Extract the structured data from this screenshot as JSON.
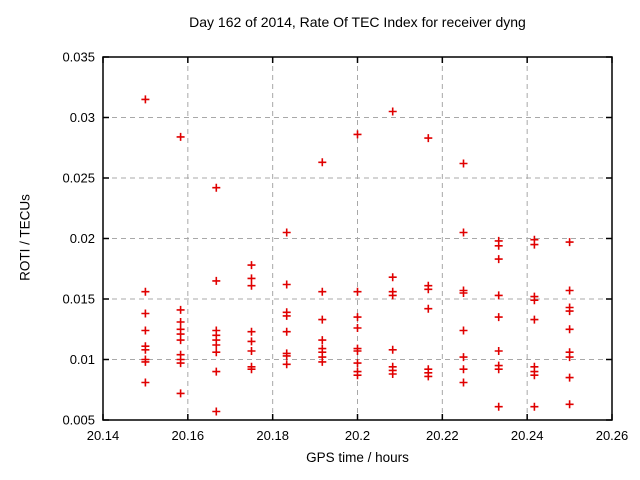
{
  "chart_data": {
    "type": "scatter",
    "title": "Day 162 of 2014, Rate Of TEC Index for receiver dyng",
    "xlabel": "GPS time / hours",
    "ylabel": "ROTI / TECUs",
    "xlim": [
      20.14,
      20.26
    ],
    "ylim": [
      0.005,
      0.035
    ],
    "xtick_values": [
      20.14,
      20.16,
      20.18,
      20.2,
      20.22,
      20.24,
      20.26
    ],
    "xtick_labels": [
      "20.14",
      "20.16",
      "20.18",
      "20.2",
      "20.22",
      "20.24",
      "20.26"
    ],
    "ytick_values": [
      0.005,
      0.01,
      0.015,
      0.02,
      0.025,
      0.03,
      0.035
    ],
    "ytick_labels": [
      "0.005",
      "0.01",
      "0.015",
      "0.02",
      "0.025",
      "0.03",
      "0.035"
    ],
    "grid": true,
    "legend": "none",
    "style": {
      "marker_shape": "plus",
      "marker_color": "#e00000",
      "marker_size": 4,
      "marker_stroke": 1.6,
      "grid_color": "#a8a8a8",
      "axis_color": "#000000",
      "text_color": "#000000",
      "background": "#ffffff"
    },
    "series": [
      {
        "name": "ROTI",
        "points": [
          [
            20.15,
            0.0315
          ],
          [
            20.15,
            0.0156
          ],
          [
            20.15,
            0.0138
          ],
          [
            20.15,
            0.0124
          ],
          [
            20.15,
            0.0111
          ],
          [
            20.15,
            0.0108
          ],
          [
            20.15,
            0.01
          ],
          [
            20.15,
            0.0098
          ],
          [
            20.15,
            0.0081
          ],
          [
            20.1583,
            0.0284
          ],
          [
            20.1583,
            0.0141
          ],
          [
            20.1583,
            0.0131
          ],
          [
            20.1583,
            0.0125
          ],
          [
            20.1583,
            0.0121
          ],
          [
            20.1583,
            0.0116
          ],
          [
            20.1583,
            0.0104
          ],
          [
            20.1583,
            0.01
          ],
          [
            20.1583,
            0.0097
          ],
          [
            20.1583,
            0.0072
          ],
          [
            20.1667,
            0.0242
          ],
          [
            20.1667,
            0.0165
          ],
          [
            20.1667,
            0.0124
          ],
          [
            20.1667,
            0.012
          ],
          [
            20.1667,
            0.0116
          ],
          [
            20.1667,
            0.0112
          ],
          [
            20.1667,
            0.0106
          ],
          [
            20.1667,
            0.009
          ],
          [
            20.1667,
            0.0057
          ],
          [
            20.175,
            0.0178
          ],
          [
            20.175,
            0.0167
          ],
          [
            20.175,
            0.0161
          ],
          [
            20.175,
            0.0123
          ],
          [
            20.175,
            0.0115
          ],
          [
            20.175,
            0.0107
          ],
          [
            20.175,
            0.0094
          ],
          [
            20.175,
            0.0092
          ],
          [
            20.1833,
            0.0205
          ],
          [
            20.1833,
            0.0162
          ],
          [
            20.1833,
            0.0139
          ],
          [
            20.1833,
            0.0136
          ],
          [
            20.1833,
            0.0123
          ],
          [
            20.1833,
            0.0105
          ],
          [
            20.1833,
            0.0103
          ],
          [
            20.1833,
            0.0096
          ],
          [
            20.1917,
            0.0263
          ],
          [
            20.1917,
            0.0156
          ],
          [
            20.1917,
            0.0133
          ],
          [
            20.1917,
            0.0116
          ],
          [
            20.1917,
            0.0109
          ],
          [
            20.1917,
            0.0106
          ],
          [
            20.1917,
            0.0102
          ],
          [
            20.1917,
            0.0098
          ],
          [
            20.2,
            0.0286
          ],
          [
            20.2,
            0.0156
          ],
          [
            20.2,
            0.0135
          ],
          [
            20.2,
            0.0126
          ],
          [
            20.2,
            0.0109
          ],
          [
            20.2,
            0.0107
          ],
          [
            20.2,
            0.0097
          ],
          [
            20.2,
            0.009
          ],
          [
            20.2,
            0.0087
          ],
          [
            20.2083,
            0.0305
          ],
          [
            20.2083,
            0.0168
          ],
          [
            20.2083,
            0.0156
          ],
          [
            20.2083,
            0.0153
          ],
          [
            20.2083,
            0.0108
          ],
          [
            20.2083,
            0.0094
          ],
          [
            20.2083,
            0.0091
          ],
          [
            20.2083,
            0.0088
          ],
          [
            20.2167,
            0.0283
          ],
          [
            20.2167,
            0.0161
          ],
          [
            20.2167,
            0.0158
          ],
          [
            20.2167,
            0.0142
          ],
          [
            20.2167,
            0.0092
          ],
          [
            20.2167,
            0.0089
          ],
          [
            20.2167,
            0.0086
          ],
          [
            20.225,
            0.0262
          ],
          [
            20.225,
            0.0205
          ],
          [
            20.225,
            0.0157
          ],
          [
            20.225,
            0.0155
          ],
          [
            20.225,
            0.0124
          ],
          [
            20.225,
            0.0102
          ],
          [
            20.225,
            0.0092
          ],
          [
            20.225,
            0.0081
          ],
          [
            20.2333,
            0.0198
          ],
          [
            20.2333,
            0.0194
          ],
          [
            20.2333,
            0.0183
          ],
          [
            20.2333,
            0.0153
          ],
          [
            20.2333,
            0.0135
          ],
          [
            20.2333,
            0.0107
          ],
          [
            20.2333,
            0.0095
          ],
          [
            20.2333,
            0.0092
          ],
          [
            20.2333,
            0.0061
          ],
          [
            20.2417,
            0.0199
          ],
          [
            20.2417,
            0.0195
          ],
          [
            20.2417,
            0.0152
          ],
          [
            20.2417,
            0.0149
          ],
          [
            20.2417,
            0.0133
          ],
          [
            20.2417,
            0.0094
          ],
          [
            20.2417,
            0.009
          ],
          [
            20.2417,
            0.0087
          ],
          [
            20.2417,
            0.0061
          ],
          [
            20.25,
            0.0197
          ],
          [
            20.25,
            0.0157
          ],
          [
            20.25,
            0.0143
          ],
          [
            20.25,
            0.014
          ],
          [
            20.25,
            0.0125
          ],
          [
            20.25,
            0.0106
          ],
          [
            20.25,
            0.0102
          ],
          [
            20.25,
            0.0085
          ],
          [
            20.25,
            0.0063
          ]
        ]
      }
    ]
  }
}
